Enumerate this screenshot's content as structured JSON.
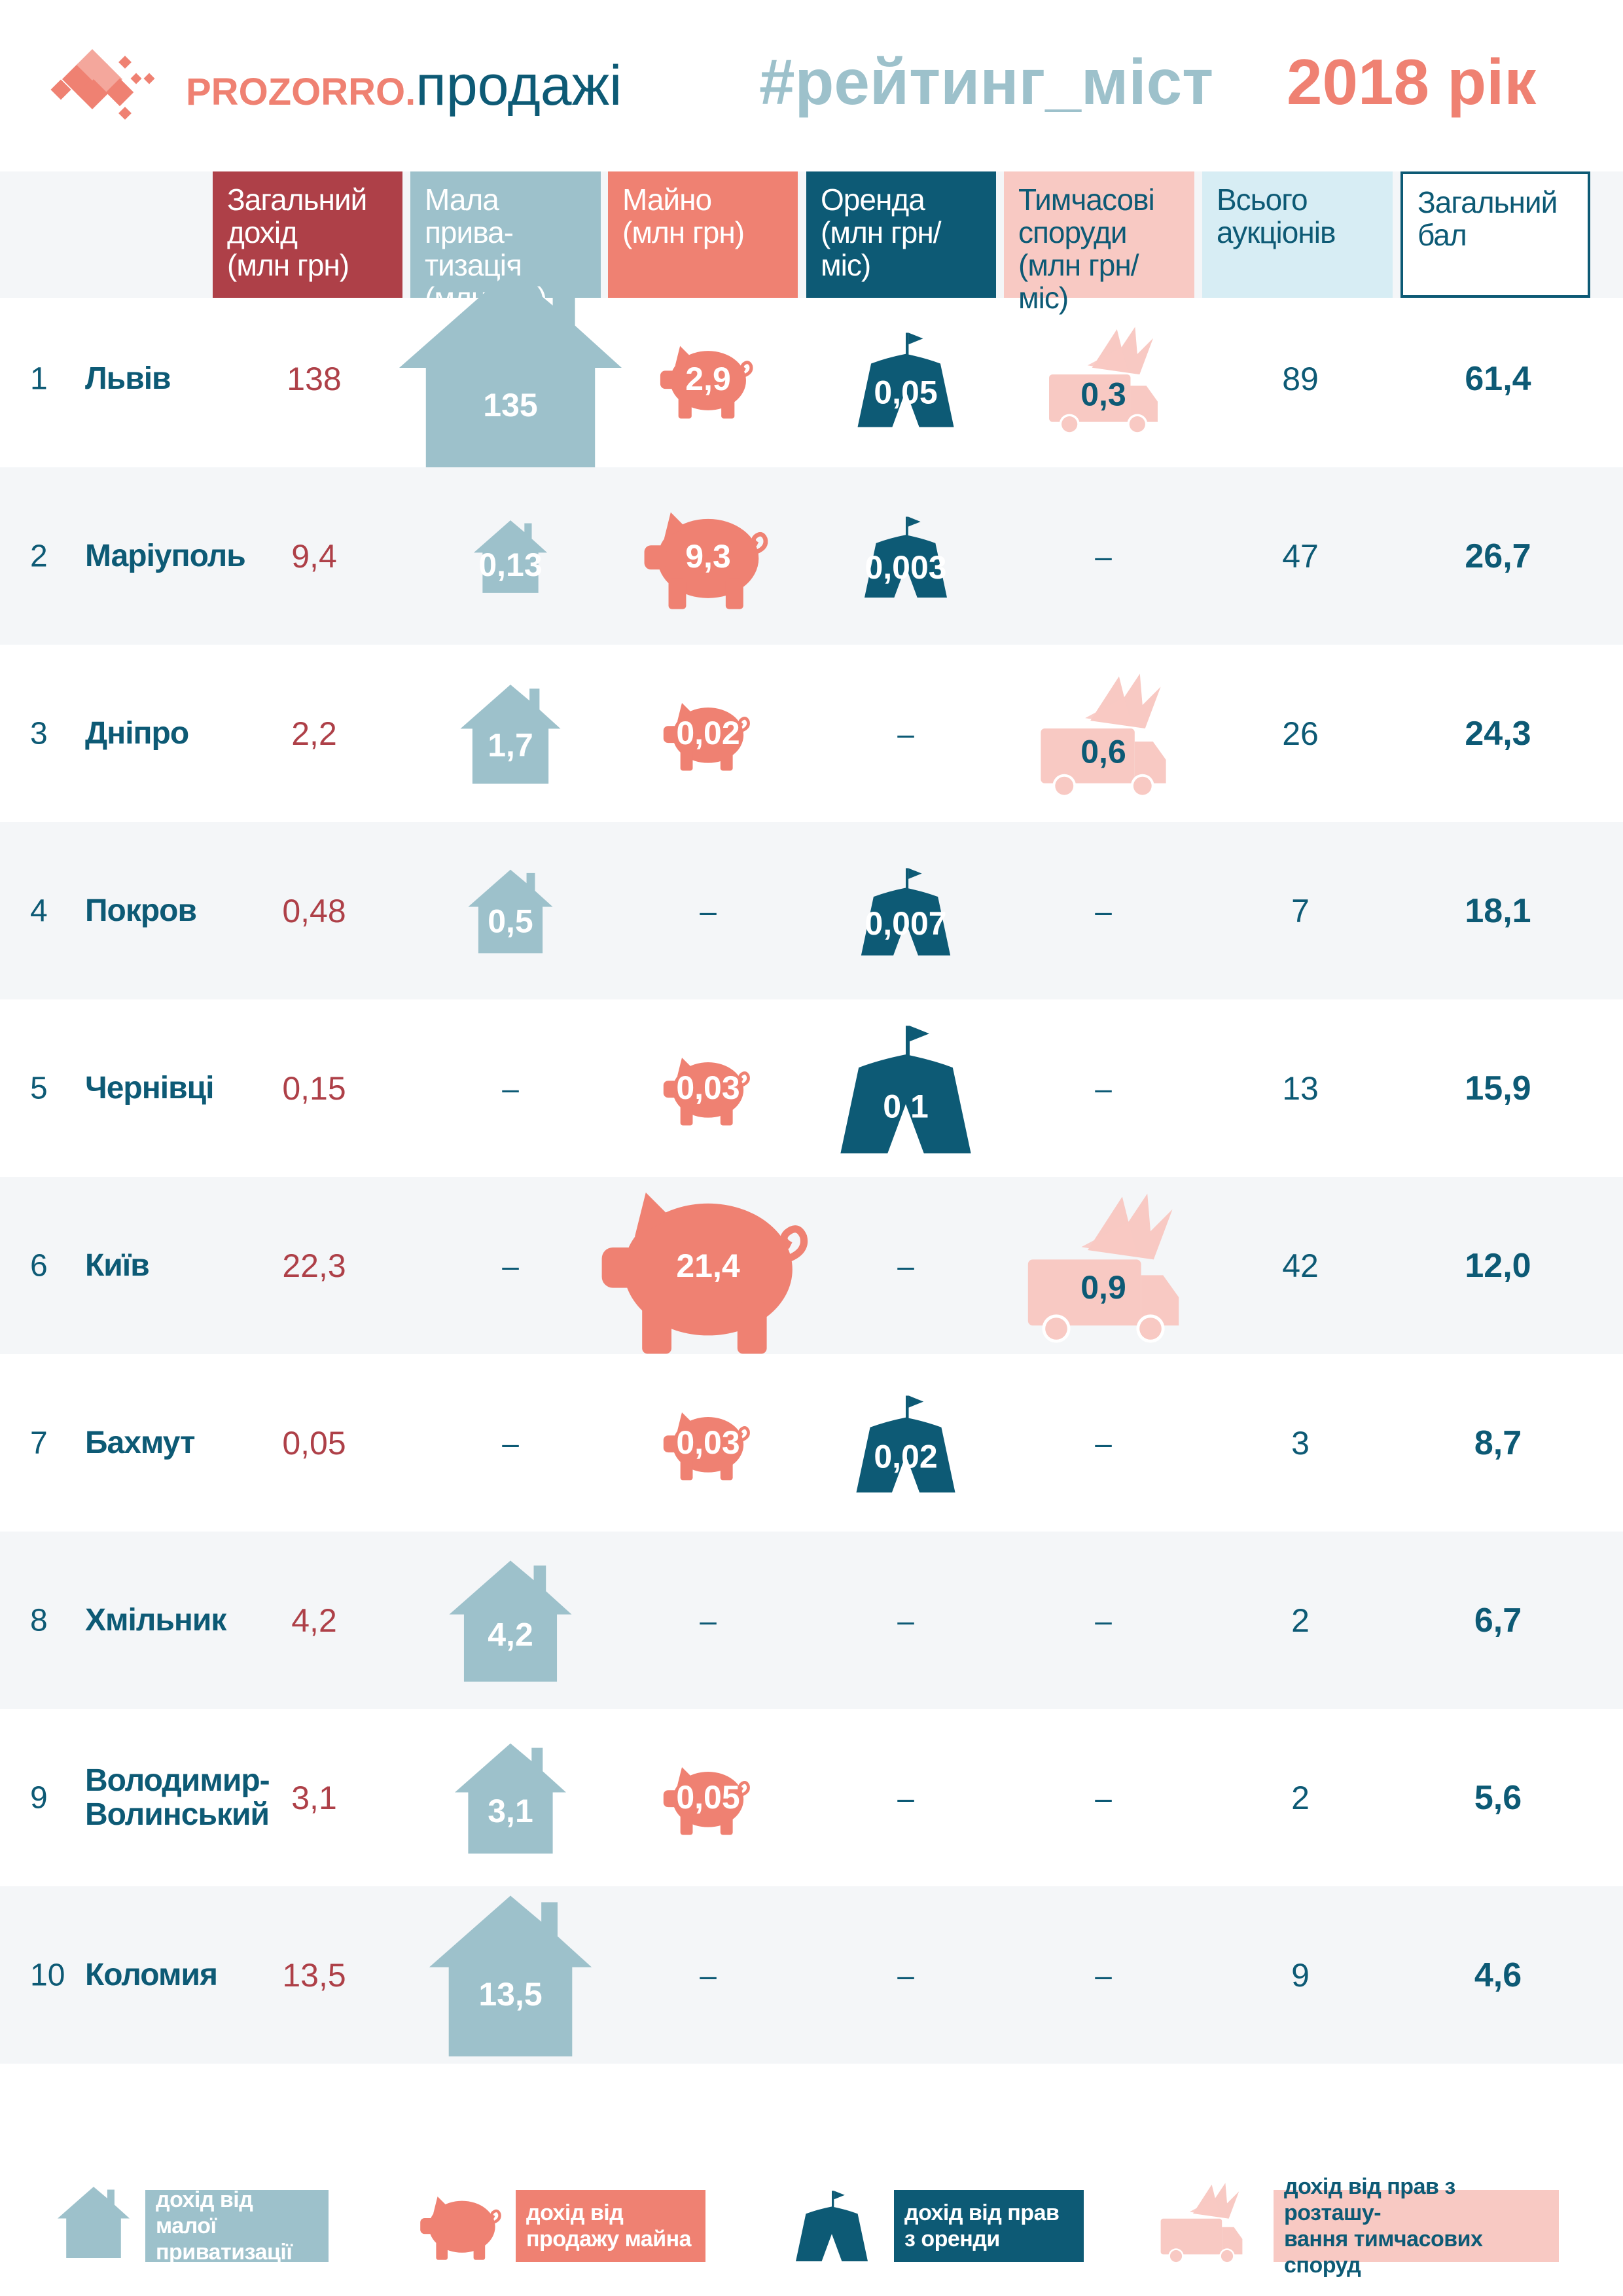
{
  "header": {
    "brand_bold": "PROZORRO",
    "brand_dot": ".",
    "brand_light": "продажі",
    "hashtag": "#рейтинг_міст",
    "year": "2018 рік"
  },
  "colors": {
    "dark_red": "#ae4048",
    "light_blue": "#9dc1cb",
    "salmon": "#ef8172",
    "dark_teal": "#0d5a75",
    "light_pink": "#f8c9c3",
    "pale_blue": "#d7edf4",
    "stripe": "#f4f6f8",
    "text_teal": "#0d5a75"
  },
  "columns": [
    {
      "key": "total",
      "label": "Загальний\nдохід\n(млн грн)"
    },
    {
      "key": "privatization",
      "label": "Мала прива-\nтизація\n(млн грн)"
    },
    {
      "key": "property",
      "label": "Майно\n(млн грн)"
    },
    {
      "key": "rent",
      "label": "Оренда\n(млн грн/міс)"
    },
    {
      "key": "temporary",
      "label": "Тимчасові\nспоруди\n(млн грн/міс)"
    },
    {
      "key": "auctions",
      "label": "Всього\nаукціонів"
    },
    {
      "key": "score",
      "label": "Загальний\nбал"
    }
  ],
  "chart_data": {
    "type": "table",
    "rows": [
      {
        "rank": "1",
        "city": "Львів",
        "total": "138",
        "privatization": "135",
        "property": "2,9",
        "rent": "0,05",
        "temporary": "0,3",
        "auctions": "89",
        "score": "61,4"
      },
      {
        "rank": "2",
        "city": "Маріуполь",
        "total": "9,4",
        "privatization": "0,13",
        "property": "9,3",
        "rent": "0,003",
        "temporary": "–",
        "auctions": "47",
        "score": "26,7"
      },
      {
        "rank": "3",
        "city": "Дніпро",
        "total": "2,2",
        "privatization": "1,7",
        "property": "0,02",
        "rent": "–",
        "temporary": "0,6",
        "auctions": "26",
        "score": "24,3"
      },
      {
        "rank": "4",
        "city": "Покров",
        "total": "0,48",
        "privatization": "0,5",
        "property": "–",
        "rent": "0,007",
        "temporary": "–",
        "auctions": "7",
        "score": "18,1"
      },
      {
        "rank": "5",
        "city": "Чернівці",
        "total": "0,15",
        "privatization": "–",
        "property": "0,03",
        "rent": "0,1",
        "temporary": "–",
        "auctions": "13",
        "score": "15,9"
      },
      {
        "rank": "6",
        "city": "Київ",
        "total": "22,3",
        "privatization": "–",
        "property": "21,4",
        "rent": "–",
        "temporary": "0,9",
        "auctions": "42",
        "score": "12,0"
      },
      {
        "rank": "7",
        "city": "Бахмут",
        "total": "0,05",
        "privatization": "–",
        "property": "0,03",
        "rent": "0,02",
        "temporary": "–",
        "auctions": "3",
        "score": "8,7"
      },
      {
        "rank": "8",
        "city": "Хмільник",
        "total": "4,2",
        "privatization": "4,2",
        "property": "–",
        "rent": "–",
        "temporary": "–",
        "auctions": "2",
        "score": "6,7"
      },
      {
        "rank": "9",
        "city": "Володимир-\nВолинський",
        "total": "3,1",
        "privatization": "3,1",
        "property": "0,05",
        "rent": "–",
        "temporary": "–",
        "auctions": "2",
        "score": "5,6"
      },
      {
        "rank": "10",
        "city": "Коломия",
        "total": "13,5",
        "privatization": "13,5",
        "property": "–",
        "rent": "–",
        "temporary": "–",
        "auctions": "9",
        "score": "4,6"
      }
    ],
    "icon_scale": {
      "privatization": [
        1.0,
        0.33,
        0.45,
        0.38,
        0,
        0,
        0,
        0.55,
        0.5,
        0.73
      ],
      "property": [
        0.45,
        0.6,
        0.42,
        0,
        0.42,
        1.0,
        0.42,
        0,
        0.42,
        0
      ],
      "rent": [
        0.7,
        0.6,
        0,
        0.65,
        0.95,
        0,
        0.72,
        0,
        0,
        0
      ],
      "temporary": [
        0.72,
        0,
        0.83,
        0,
        0,
        1.0,
        0,
        0,
        0,
        0
      ]
    }
  },
  "legend": [
    {
      "icon": "house-icon",
      "label": "дохід від малої\nприватизації"
    },
    {
      "icon": "piggy-bank-icon",
      "label": "дохід від\nпродажу майна"
    },
    {
      "icon": "tent-icon",
      "label": "дохід від прав\nз оренди"
    },
    {
      "icon": "kiosk-truck-icon",
      "label": "дохід від прав з розташу-\nвання тимчасових споруд"
    }
  ]
}
